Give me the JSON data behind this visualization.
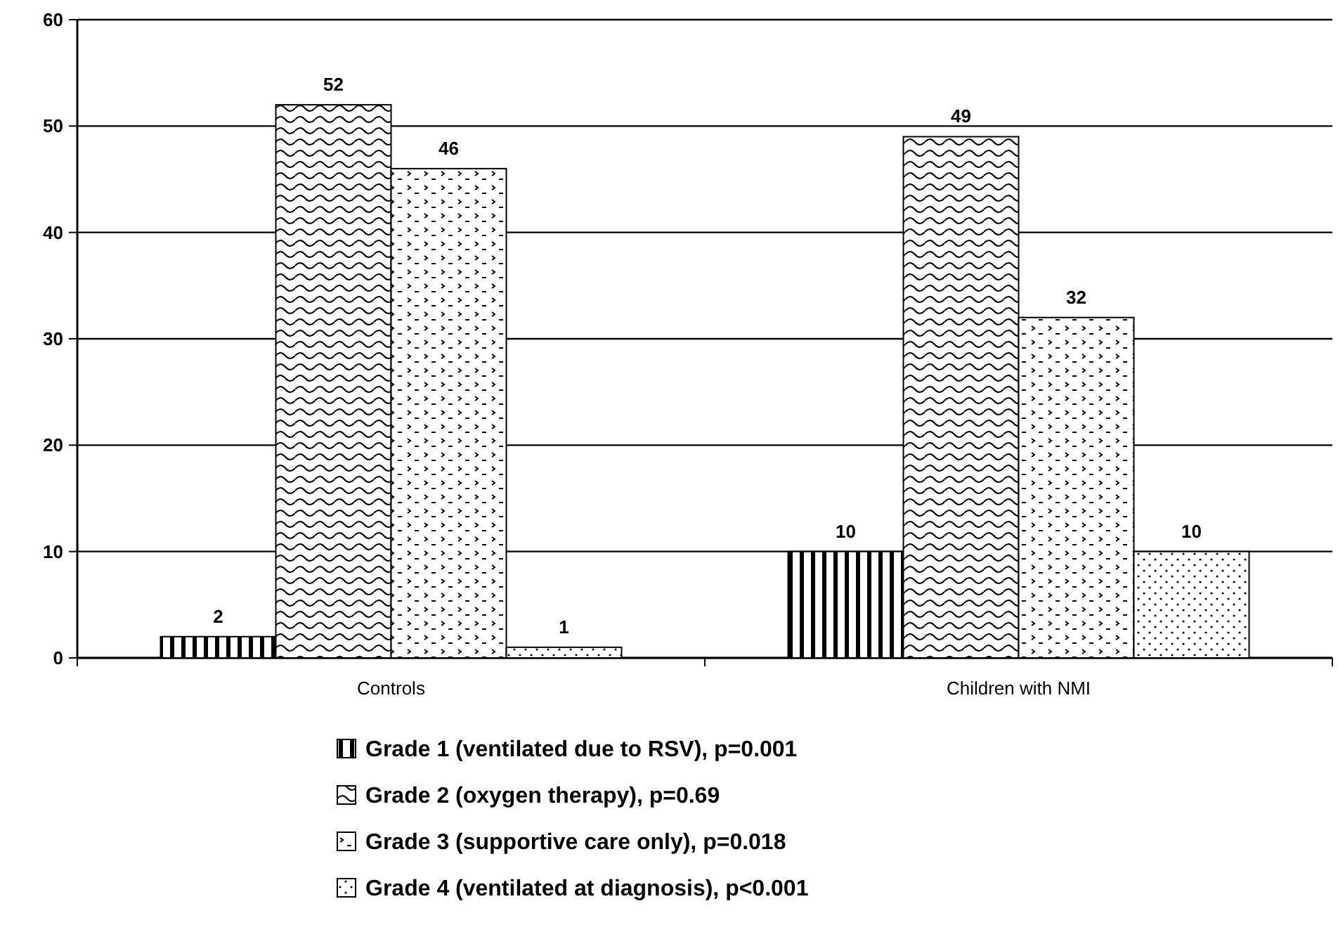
{
  "chart_data": {
    "type": "bar",
    "categories": [
      "Controls",
      "Children with NMI"
    ],
    "series": [
      {
        "name": "Grade 1 (ventilated due to RSV), p=0.001",
        "color": "#000000",
        "values": [
          2,
          10
        ]
      },
      {
        "name": "Grade 2 (oxygen therapy), p=0.69",
        "color": "#000000",
        "values": [
          52,
          49
        ]
      },
      {
        "name": "Grade 3 (supportive care only), p=0.018",
        "color": "#000000",
        "values": [
          46,
          32
        ]
      },
      {
        "name": "Grade 4 (ventilated at diagnosis), p<0.001",
        "color": "#000000",
        "values": [
          1,
          10
        ]
      }
    ],
    "ylim": [
      0,
      60
    ],
    "yticks": [
      0,
      10,
      20,
      30,
      40,
      50,
      60
    ],
    "grid": "y",
    "data_labels": true,
    "legend": "bottom"
  }
}
